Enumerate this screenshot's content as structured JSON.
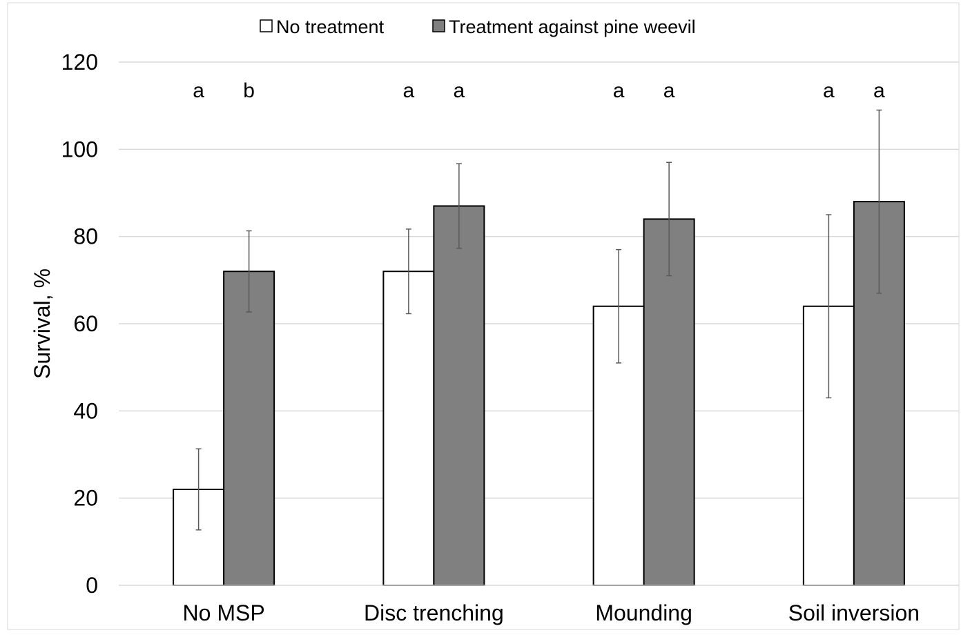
{
  "chart_data": {
    "type": "bar",
    "categories": [
      "No MSP",
      "Disc trenching",
      "Mounding",
      "Soil inversion"
    ],
    "series": [
      {
        "name": "No treatment",
        "color": "#ffffff",
        "values": [
          22,
          72,
          64,
          64
        ],
        "error": [
          9.3,
          9.7,
          13,
          21
        ],
        "letters": [
          "a",
          "a",
          "a",
          "a"
        ]
      },
      {
        "name": "Treatment against pine weevil",
        "color": "#808080",
        "values": [
          72,
          87,
          84,
          88
        ],
        "error": [
          9.3,
          9.7,
          13,
          21
        ],
        "letters": [
          "b",
          "a",
          "a",
          "a"
        ]
      }
    ],
    "title": "",
    "xlabel": "",
    "ylabel": "Survival, %",
    "ylim": [
      0,
      120
    ],
    "yticks": [
      0,
      20,
      40,
      60,
      80,
      100,
      120
    ],
    "grid": true,
    "legend_position": "top"
  }
}
